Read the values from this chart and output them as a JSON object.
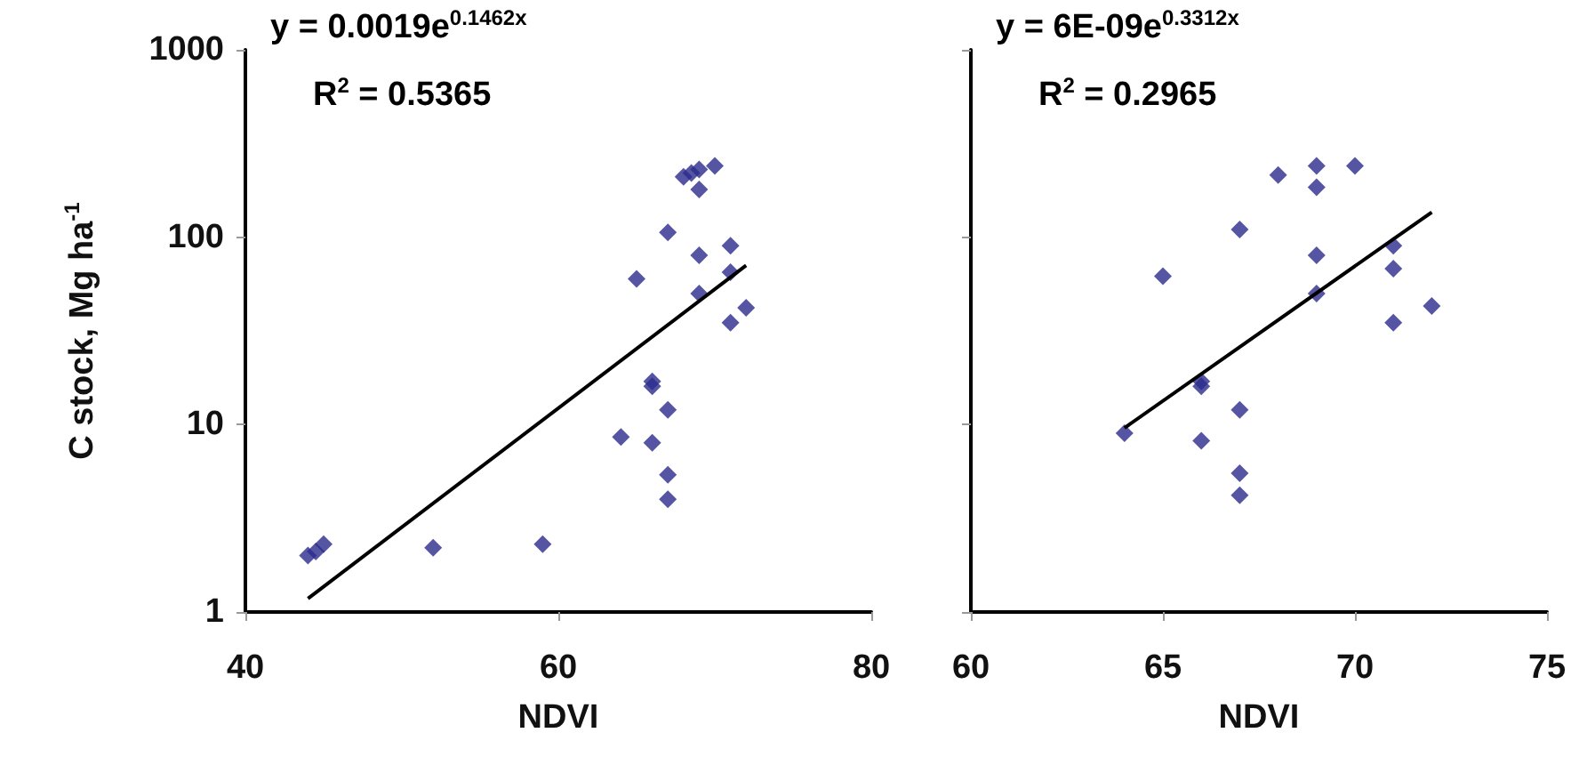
{
  "chart_data": [
    {
      "type": "scatter",
      "xlabel": "NDVI",
      "ylabel": "C stock, Mg ha$^{-1}$",
      "log": "y",
      "xlim": [
        40,
        80
      ],
      "xticks": [
        40,
        60,
        80
      ],
      "ylim": [
        1,
        1000
      ],
      "yticks": [
        1,
        10,
        100,
        1000
      ],
      "grid": false,
      "marker": "diamond",
      "annotations": [
        "y = 0.0019e$^{0.1462x}$",
        "R$^{2}$ = 0.5365"
      ],
      "series": [
        {
          "color": "#2b2b8c",
          "x": [
            44,
            44.5,
            45,
            52,
            59,
            64,
            65,
            66,
            66,
            66,
            67,
            67,
            67,
            67,
            68,
            68.5,
            69,
            69,
            69,
            69,
            70,
            71,
            71,
            71,
            72
          ],
          "values": [
            2.0,
            2.1,
            2.3,
            2.2,
            2.3,
            8.6,
            60,
            17,
            16,
            8,
            12,
            5.4,
            4,
            106,
            210,
            220,
            230,
            180,
            80,
            50,
            240,
            90,
            65,
            35,
            42
          ]
        },
        {
          "type": "line",
          "color": "#000000",
          "marker": "none",
          "x": [
            44,
            72
          ],
          "values": [
            1.18,
            70.7
          ]
        }
      ]
    },
    {
      "type": "scatter",
      "xlabel": "NDVI",
      "log": "y",
      "xlim": [
        60,
        75
      ],
      "xticks": [
        60,
        65,
        70,
        75
      ],
      "ylim": [
        1,
        1000
      ],
      "yticks": [
        1,
        10,
        100,
        1000
      ],
      "tick_labels": "x",
      "grid": false,
      "marker": "diamond",
      "annotations": [
        "y = 6E-09e$^{0.3312x}$",
        "R$^{2}$ = 0.2965"
      ],
      "series": [
        {
          "color": "#2b2b8c",
          "x": [
            64,
            65,
            66,
            66,
            66,
            67,
            67,
            67,
            67,
            68,
            69,
            69,
            69,
            69,
            70,
            71,
            71,
            71,
            72
          ],
          "values": [
            9,
            62,
            17,
            16,
            8.2,
            12,
            5.5,
            4.2,
            110,
            215,
            240,
            185,
            80,
            50,
            240,
            90,
            68,
            35,
            43
          ]
        },
        {
          "type": "line",
          "color": "#000000",
          "marker": "none",
          "x": [
            64,
            72
          ],
          "values": [
            9.6,
            136
          ]
        }
      ]
    }
  ]
}
